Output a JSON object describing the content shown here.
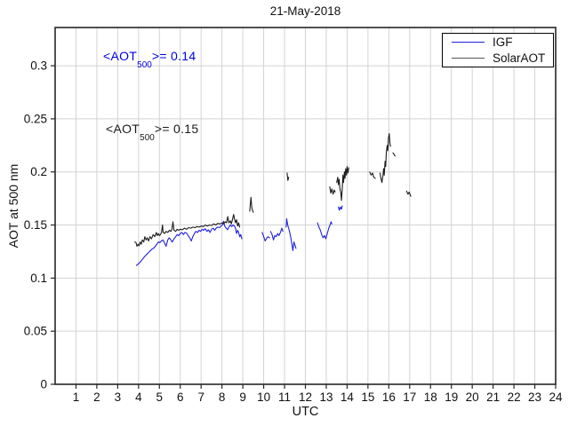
{
  "chart": {
    "title": "21-May-2018",
    "xlabel": "UTC",
    "ylabel": "AOT at 500 nm"
  },
  "annotations": {
    "igf": {
      "prefix": "<AOT",
      "sub": "500",
      "suffix": ">= 0.14",
      "color": "#0000e0"
    },
    "solar": {
      "prefix": "<AOT",
      "sub": "500",
      "suffix": ">= 0.15",
      "color": "#1a1a1a"
    }
  },
  "legend": {
    "items": [
      {
        "label": "IGF",
        "color": "#2222dd"
      },
      {
        "label": "SolarAOT",
        "color": "#555555"
      }
    ]
  },
  "colors": {
    "grid": "#d3d3d3",
    "axis": "#262626",
    "igf_line": "#2020d8",
    "solar_line": "#1c1c1c"
  },
  "chart_data": {
    "type": "line",
    "title": "21-May-2018",
    "xlabel": "UTC",
    "ylabel": "AOT at 500 nm",
    "xlim": [
      0,
      24
    ],
    "ylim": [
      0,
      0.336
    ],
    "xticks": [
      1,
      2,
      3,
      4,
      5,
      6,
      7,
      8,
      9,
      10,
      11,
      12,
      13,
      14,
      15,
      16,
      17,
      18,
      19,
      20,
      21,
      22,
      23,
      24
    ],
    "yticks": [
      0,
      0.05,
      0.1,
      0.15,
      0.2,
      0.25,
      0.3
    ],
    "ytick_labels": [
      "0",
      "0.05",
      "0.1",
      "0.15",
      "0.2",
      "0.25",
      "0.3"
    ],
    "grid": true,
    "legend_position": "top-right",
    "series": [
      {
        "name": "IGF",
        "color": "#2020d8",
        "mean_aot_500": 0.14,
        "segments": [
          [
            [
              3.9,
              0.112
            ],
            [
              3.97,
              0.113
            ],
            [
              4.05,
              0.1145
            ],
            [
              4.12,
              0.116
            ],
            [
              4.2,
              0.118
            ],
            [
              4.28,
              0.12
            ],
            [
              4.35,
              0.1215
            ],
            [
              4.43,
              0.123
            ],
            [
              4.5,
              0.1245
            ],
            [
              4.58,
              0.126
            ],
            [
              4.65,
              0.1275
            ],
            [
              4.72,
              0.128
            ],
            [
              4.8,
              0.13
            ],
            [
              4.88,
              0.132
            ],
            [
              4.95,
              0.134
            ],
            [
              5.02,
              0.1335
            ],
            [
              5.1,
              0.135
            ],
            [
              5.17,
              0.136
            ],
            [
              5.25,
              0.133
            ],
            [
              5.32,
              0.13
            ],
            [
              5.4,
              0.136
            ],
            [
              5.47,
              0.138
            ],
            [
              5.55,
              0.136
            ],
            [
              5.62,
              0.134
            ],
            [
              5.7,
              0.137
            ],
            [
              5.78,
              0.139
            ],
            [
              5.85,
              0.141
            ],
            [
              5.92,
              0.14
            ],
            [
              6.0,
              0.142
            ],
            [
              6.08,
              0.143
            ],
            [
              6.15,
              0.141
            ],
            [
              6.22,
              0.143
            ],
            [
              6.3,
              0.1425
            ],
            [
              6.38,
              0.14
            ],
            [
              6.45,
              0.138
            ],
            [
              6.53,
              0.135
            ],
            [
              6.6,
              0.139
            ],
            [
              6.68,
              0.142
            ],
            [
              6.75,
              0.144
            ],
            [
              6.83,
              0.143
            ],
            [
              6.9,
              0.145
            ],
            [
              6.98,
              0.144
            ],
            [
              7.05,
              0.146
            ],
            [
              7.12,
              0.145
            ],
            [
              7.2,
              0.1465
            ],
            [
              7.28,
              0.144
            ],
            [
              7.35,
              0.1455
            ],
            [
              7.43,
              0.143
            ],
            [
              7.5,
              0.146
            ],
            [
              7.58,
              0.147
            ],
            [
              7.65,
              0.145
            ],
            [
              7.72,
              0.147
            ],
            [
              7.8,
              0.148
            ],
            [
              7.88,
              0.1475
            ],
            [
              7.95,
              0.149
            ],
            [
              8.02,
              0.15
            ],
            [
              8.08,
              0.1535
            ],
            [
              8.13,
              0.149
            ],
            [
              8.2,
              0.147
            ],
            [
              8.27,
              0.1455
            ],
            [
              8.33,
              0.148
            ],
            [
              8.4,
              0.15
            ],
            [
              8.47,
              0.1485
            ],
            [
              8.53,
              0.15
            ],
            [
              8.6,
              0.149
            ],
            [
              8.65,
              0.147
            ],
            [
              8.7,
              0.142
            ],
            [
              8.75,
              0.145
            ],
            [
              8.8,
              0.143
            ],
            [
              8.85,
              0.139
            ],
            [
              8.9,
              0.141
            ],
            [
              8.95,
              0.137
            ]
          ],
          [
            [
              9.93,
              0.143
            ],
            [
              10.0,
              0.139
            ],
            [
              10.07,
              0.135
            ],
            [
              10.13,
              0.137
            ],
            [
              10.2,
              0.139
            ],
            [
              10.28,
              0.138
            ]
          ],
          [
            [
              10.33,
              0.144
            ],
            [
              10.4,
              0.141
            ],
            [
              10.47,
              0.136
            ],
            [
              10.53,
              0.14
            ],
            [
              10.6,
              0.139
            ],
            [
              10.67,
              0.142
            ],
            [
              10.73,
              0.14
            ],
            [
              10.8,
              0.143
            ],
            [
              10.87,
              0.147
            ],
            [
              10.92,
              0.144
            ]
          ],
          [
            [
              11.08,
              0.148
            ],
            [
              11.1,
              0.156
            ],
            [
              11.15,
              0.15
            ],
            [
              11.2,
              0.147
            ],
            [
              11.25,
              0.143
            ],
            [
              11.3,
              0.138
            ],
            [
              11.35,
              0.132
            ],
            [
              11.4,
              0.126
            ],
            [
              11.45,
              0.134
            ],
            [
              11.5,
              0.131
            ],
            [
              11.55,
              0.128
            ]
          ],
          [
            [
              12.58,
              0.152
            ],
            [
              12.65,
              0.148
            ],
            [
              12.72,
              0.145
            ],
            [
              12.78,
              0.141
            ],
            [
              12.85,
              0.138
            ],
            [
              12.92,
              0.14
            ],
            [
              12.98,
              0.137
            ],
            [
              13.05,
              0.142
            ],
            [
              13.12,
              0.147
            ],
            [
              13.18,
              0.15
            ],
            [
              13.23,
              0.153
            ],
            [
              13.27,
              0.151
            ]
          ],
          [
            [
              13.58,
              0.167
            ],
            [
              13.63,
              0.164
            ],
            [
              13.68,
              0.167
            ],
            [
              13.73,
              0.165
            ],
            [
              13.77,
              0.168
            ]
          ]
        ]
      },
      {
        "name": "SolarAOT",
        "color": "#1c1c1c",
        "mean_aot_500": 0.15,
        "segments": [
          [
            [
              3.82,
              0.134
            ],
            [
              3.88,
              0.1335
            ],
            [
              3.92,
              0.13
            ],
            [
              3.98,
              0.132
            ],
            [
              4.03,
              0.1305
            ],
            [
              4.08,
              0.134
            ],
            [
              4.13,
              0.132
            ],
            [
              4.18,
              0.136
            ],
            [
              4.25,
              0.134
            ],
            [
              4.3,
              0.139
            ],
            [
              4.36,
              0.136
            ],
            [
              4.42,
              0.138
            ],
            [
              4.48,
              0.135
            ],
            [
              4.55,
              0.139
            ],
            [
              4.62,
              0.137
            ],
            [
              4.7,
              0.141
            ],
            [
              4.78,
              0.139
            ],
            [
              4.85,
              0.143
            ],
            [
              4.9,
              0.14
            ],
            [
              4.95,
              0.142
            ],
            [
              5.0,
              0.14
            ],
            [
              5.05,
              0.141
            ],
            [
              5.1,
              0.143
            ],
            [
              5.15,
              0.15
            ],
            [
              5.18,
              0.143
            ],
            [
              5.25,
              0.142
            ],
            [
              5.32,
              0.144
            ],
            [
              5.4,
              0.143
            ],
            [
              5.48,
              0.145
            ],
            [
              5.55,
              0.144
            ],
            [
              5.6,
              0.146
            ],
            [
              5.65,
              0.153
            ],
            [
              5.7,
              0.145
            ],
            [
              5.78,
              0.144
            ],
            [
              5.85,
              0.146
            ],
            [
              5.92,
              0.145
            ],
            [
              6.0,
              0.146
            ],
            [
              6.1,
              0.1455
            ],
            [
              6.2,
              0.147
            ],
            [
              6.3,
              0.146
            ],
            [
              6.4,
              0.1475
            ],
            [
              6.5,
              0.147
            ],
            [
              6.6,
              0.148
            ],
            [
              6.7,
              0.1475
            ],
            [
              6.8,
              0.1485
            ],
            [
              6.9,
              0.148
            ],
            [
              7.0,
              0.149
            ],
            [
              7.1,
              0.1485
            ],
            [
              7.2,
              0.15
            ],
            [
              7.3,
              0.149
            ],
            [
              7.4,
              0.15
            ],
            [
              7.5,
              0.1495
            ],
            [
              7.6,
              0.151
            ],
            [
              7.7,
              0.15
            ],
            [
              7.8,
              0.1515
            ],
            [
              7.9,
              0.151
            ],
            [
              8.0,
              0.152
            ],
            [
              8.08,
              0.151
            ],
            [
              8.15,
              0.153
            ],
            [
              8.22,
              0.152
            ],
            [
              8.28,
              0.158
            ],
            [
              8.33,
              0.152
            ],
            [
              8.4,
              0.154
            ],
            [
              8.45,
              0.151
            ],
            [
              8.5,
              0.155
            ],
            [
              8.56,
              0.16
            ],
            [
              8.6,
              0.156
            ],
            [
              8.65,
              0.152
            ],
            [
              8.7,
              0.155
            ],
            [
              8.75,
              0.149
            ],
            [
              8.8,
              0.152
            ],
            [
              8.85,
              0.148
            ]
          ],
          [
            [
              9.33,
              0.163
            ],
            [
              9.36,
              0.17
            ],
            [
              9.39,
              0.176
            ],
            [
              9.42,
              0.168
            ],
            [
              9.46,
              0.164
            ],
            [
              9.5,
              0.162
            ]
          ],
          [
            [
              11.12,
              0.199
            ],
            [
              11.16,
              0.192
            ],
            [
              11.2,
              0.195
            ]
          ],
          [
            [
              13.17,
              0.186
            ],
            [
              13.22,
              0.18
            ],
            [
              13.27,
              0.184
            ],
            [
              13.33,
              0.179
            ],
            [
              13.38,
              0.183
            ],
            [
              13.43,
              0.181
            ]
          ],
          [
            [
              13.5,
              0.19
            ],
            [
              13.55,
              0.195
            ],
            [
              13.58,
              0.188
            ],
            [
              13.62,
              0.193
            ],
            [
              13.65,
              0.185
            ],
            [
              13.7,
              0.18
            ],
            [
              13.73,
              0.173
            ],
            [
              13.77,
              0.185
            ],
            [
              13.8,
              0.197
            ],
            [
              13.83,
              0.19
            ],
            [
              13.87,
              0.2
            ],
            [
              13.9,
              0.194
            ],
            [
              13.93,
              0.203
            ],
            [
              13.97,
              0.197
            ],
            [
              14.0,
              0.205
            ],
            [
              14.04,
              0.199
            ],
            [
              14.08,
              0.204
            ]
          ],
          [
            [
              15.08,
              0.2
            ],
            [
              15.15,
              0.197
            ],
            [
              15.22,
              0.199
            ],
            [
              15.28,
              0.195
            ],
            [
              15.35,
              0.194
            ]
          ],
          [
            [
              15.58,
              0.199
            ],
            [
              15.62,
              0.194
            ],
            [
              15.67,
              0.19
            ],
            [
              15.72,
              0.197
            ],
            [
              15.75,
              0.203
            ],
            [
              15.78,
              0.197
            ],
            [
              15.82,
              0.21
            ],
            [
              15.85,
              0.205
            ],
            [
              15.88,
              0.218
            ],
            [
              15.92,
              0.225
            ],
            [
              15.95,
              0.22
            ],
            [
              15.98,
              0.232
            ],
            [
              16.02,
              0.236
            ],
            [
              16.05,
              0.228
            ],
            [
              16.08,
              0.224
            ]
          ],
          [
            [
              16.2,
              0.218
            ],
            [
              16.3,
              0.215
            ]
          ],
          [
            [
              16.85,
              0.182
            ],
            [
              16.92,
              0.179
            ],
            [
              16.98,
              0.181
            ],
            [
              17.05,
              0.177
            ]
          ]
        ]
      }
    ]
  }
}
